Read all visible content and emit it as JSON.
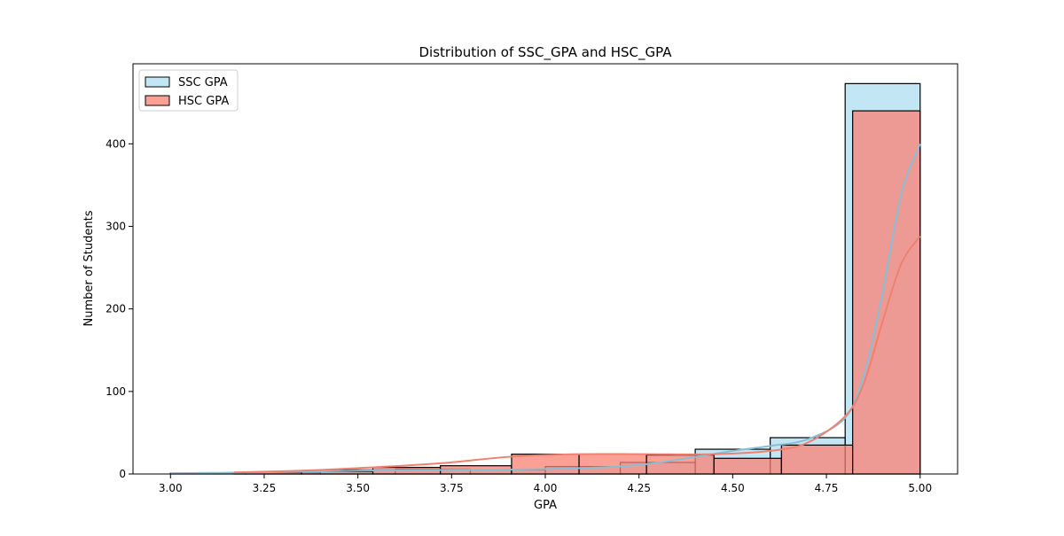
{
  "chart_data": {
    "type": "histogram",
    "title": "Distribution of SSC_GPA and HSC_GPA",
    "xlabel": "GPA",
    "ylabel": "Number of Students",
    "xlim": [
      2.9,
      5.1
    ],
    "ylim": [
      0,
      497
    ],
    "xticks": [
      3.0,
      3.25,
      3.5,
      3.75,
      4.0,
      4.25,
      4.5,
      4.75,
      5.0
    ],
    "xtick_labels": [
      "3.00",
      "3.25",
      "3.50",
      "3.75",
      "4.00",
      "4.25",
      "4.50",
      "4.75",
      "5.00"
    ],
    "yticks": [
      0,
      100,
      200,
      300,
      400
    ],
    "ytick_labels": [
      "0",
      "100",
      "200",
      "300",
      "400"
    ],
    "grid": false,
    "legend_position": "top-left",
    "series": [
      {
        "name": "SSC GPA",
        "color": "#87ceeb",
        "line_color": "#87bfd6",
        "bins": [
          {
            "x0": 3.0,
            "x1": 3.2,
            "count": 1
          },
          {
            "x0": 3.2,
            "x1": 3.4,
            "count": 2
          },
          {
            "x0": 3.4,
            "x1": 3.6,
            "count": 5
          },
          {
            "x0": 3.6,
            "x1": 3.8,
            "count": 6
          },
          {
            "x0": 3.8,
            "x1": 4.0,
            "count": 5
          },
          {
            "x0": 4.0,
            "x1": 4.2,
            "count": 9
          },
          {
            "x0": 4.2,
            "x1": 4.4,
            "count": 14
          },
          {
            "x0": 4.4,
            "x1": 4.6,
            "count": 30
          },
          {
            "x0": 4.6,
            "x1": 4.8,
            "count": 44
          },
          {
            "x0": 4.8,
            "x1": 5.0,
            "count": 473
          }
        ],
        "kde": [
          [
            3.0,
            1
          ],
          [
            3.25,
            2
          ],
          [
            3.5,
            4
          ],
          [
            3.75,
            5
          ],
          [
            4.0,
            6
          ],
          [
            4.25,
            11
          ],
          [
            4.5,
            28
          ],
          [
            4.6,
            34
          ],
          [
            4.7,
            42
          ],
          [
            4.8,
            68
          ],
          [
            4.85,
            120
          ],
          [
            4.9,
            220
          ],
          [
            4.95,
            340
          ],
          [
            5.0,
            400
          ]
        ]
      },
      {
        "name": "HSC GPA",
        "color": "#fa8072",
        "line_color": "#f08070",
        "bins": [
          {
            "x0": 3.17,
            "x1": 3.35,
            "count": 2
          },
          {
            "x0": 3.35,
            "x1": 3.54,
            "count": 3
          },
          {
            "x0": 3.54,
            "x1": 3.72,
            "count": 8
          },
          {
            "x0": 3.72,
            "x1": 3.91,
            "count": 10
          },
          {
            "x0": 3.91,
            "x1": 4.09,
            "count": 24
          },
          {
            "x0": 4.09,
            "x1": 4.27,
            "count": 24
          },
          {
            "x0": 4.27,
            "x1": 4.45,
            "count": 23
          },
          {
            "x0": 4.45,
            "x1": 4.63,
            "count": 19
          },
          {
            "x0": 4.63,
            "x1": 4.82,
            "count": 35
          },
          {
            "x0": 4.82,
            "x1": 5.0,
            "count": 440
          }
        ],
        "kde": [
          [
            3.17,
            2
          ],
          [
            3.35,
            4
          ],
          [
            3.54,
            8
          ],
          [
            3.72,
            13
          ],
          [
            3.91,
            21
          ],
          [
            4.09,
            24
          ],
          [
            4.27,
            24
          ],
          [
            4.45,
            24
          ],
          [
            4.6,
            28
          ],
          [
            4.7,
            38
          ],
          [
            4.8,
            70
          ],
          [
            4.85,
            110
          ],
          [
            4.9,
            185
          ],
          [
            4.95,
            255
          ],
          [
            5.0,
            288
          ]
        ]
      }
    ]
  }
}
